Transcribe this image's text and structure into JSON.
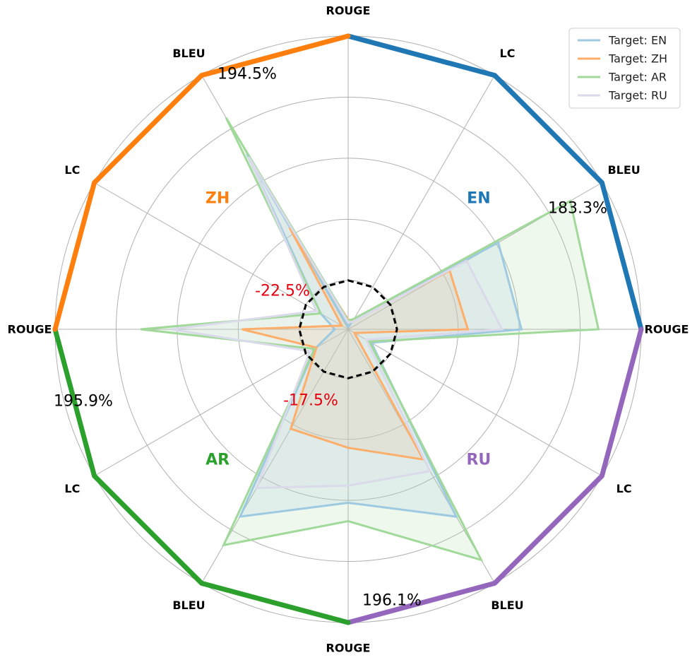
{
  "chart_data": {
    "type": "radar",
    "axes": [
      {
        "label": "ROUGE",
        "group": "EN"
      },
      {
        "label": "LC",
        "group": "EN"
      },
      {
        "label": "BLEU",
        "group": "EN"
      },
      {
        "label": "ROUGE",
        "group": "RU"
      },
      {
        "label": "LC",
        "group": "RU"
      },
      {
        "label": "BLEU",
        "group": "RU"
      },
      {
        "label": "ROUGE",
        "group": "AR"
      },
      {
        "label": "BLEU",
        "group": "AR"
      },
      {
        "label": "LC",
        "group": "AR"
      },
      {
        "label": "ROUGE",
        "group": "ZH"
      },
      {
        "label": "LC",
        "group": "ZH"
      },
      {
        "label": "BLEU",
        "group": "ZH"
      }
    ],
    "rlim": [
      -40,
      200
    ],
    "grid_rings": [
      0,
      50,
      100,
      150,
      200
    ],
    "baseline_value": 0,
    "groups": [
      {
        "name": "EN",
        "color": "#1f77b4",
        "label_pct": "183.3%"
      },
      {
        "name": "RU",
        "color": "#9467bd",
        "label_pct": "196.1%"
      },
      {
        "name": "AR",
        "color": "#2ca02c",
        "label_pct": "195.9%"
      },
      {
        "name": "ZH",
        "color": "#ff7f0e",
        "label_pct": "194.5%"
      }
    ],
    "annotations": [
      {
        "text": "-22.5%",
        "color": "#e3000f"
      },
      {
        "text": "-17.5%",
        "color": "#e3000f"
      }
    ],
    "series": [
      {
        "name": "Target: EN",
        "color": "#9ecae1",
        "values": [
          -38,
          -32,
          102,
          102,
          -18,
          137,
          102,
          137,
          -9,
          -29,
          -14,
          126
        ]
      },
      {
        "name": "Target: ZH",
        "color": "#fdae6b",
        "values": [
          -32,
          -32,
          56,
          58,
          -34,
          83,
          57,
          54,
          -10,
          47,
          -34,
          56
        ]
      },
      {
        "name": "Target: AR",
        "color": "#a1d99b",
        "values": [
          -33,
          -30,
          170,
          165,
          -20,
          178,
          117,
          164,
          -8,
          130,
          -14,
          160
        ]
      },
      {
        "name": "Target: RU",
        "color": "#dadaeb",
        "values": [
          -34,
          -33,
          72,
          86,
          -23,
          94,
          88,
          110,
          -4,
          105,
          -10,
          123
        ]
      }
    ],
    "legend_position": "top-right"
  }
}
